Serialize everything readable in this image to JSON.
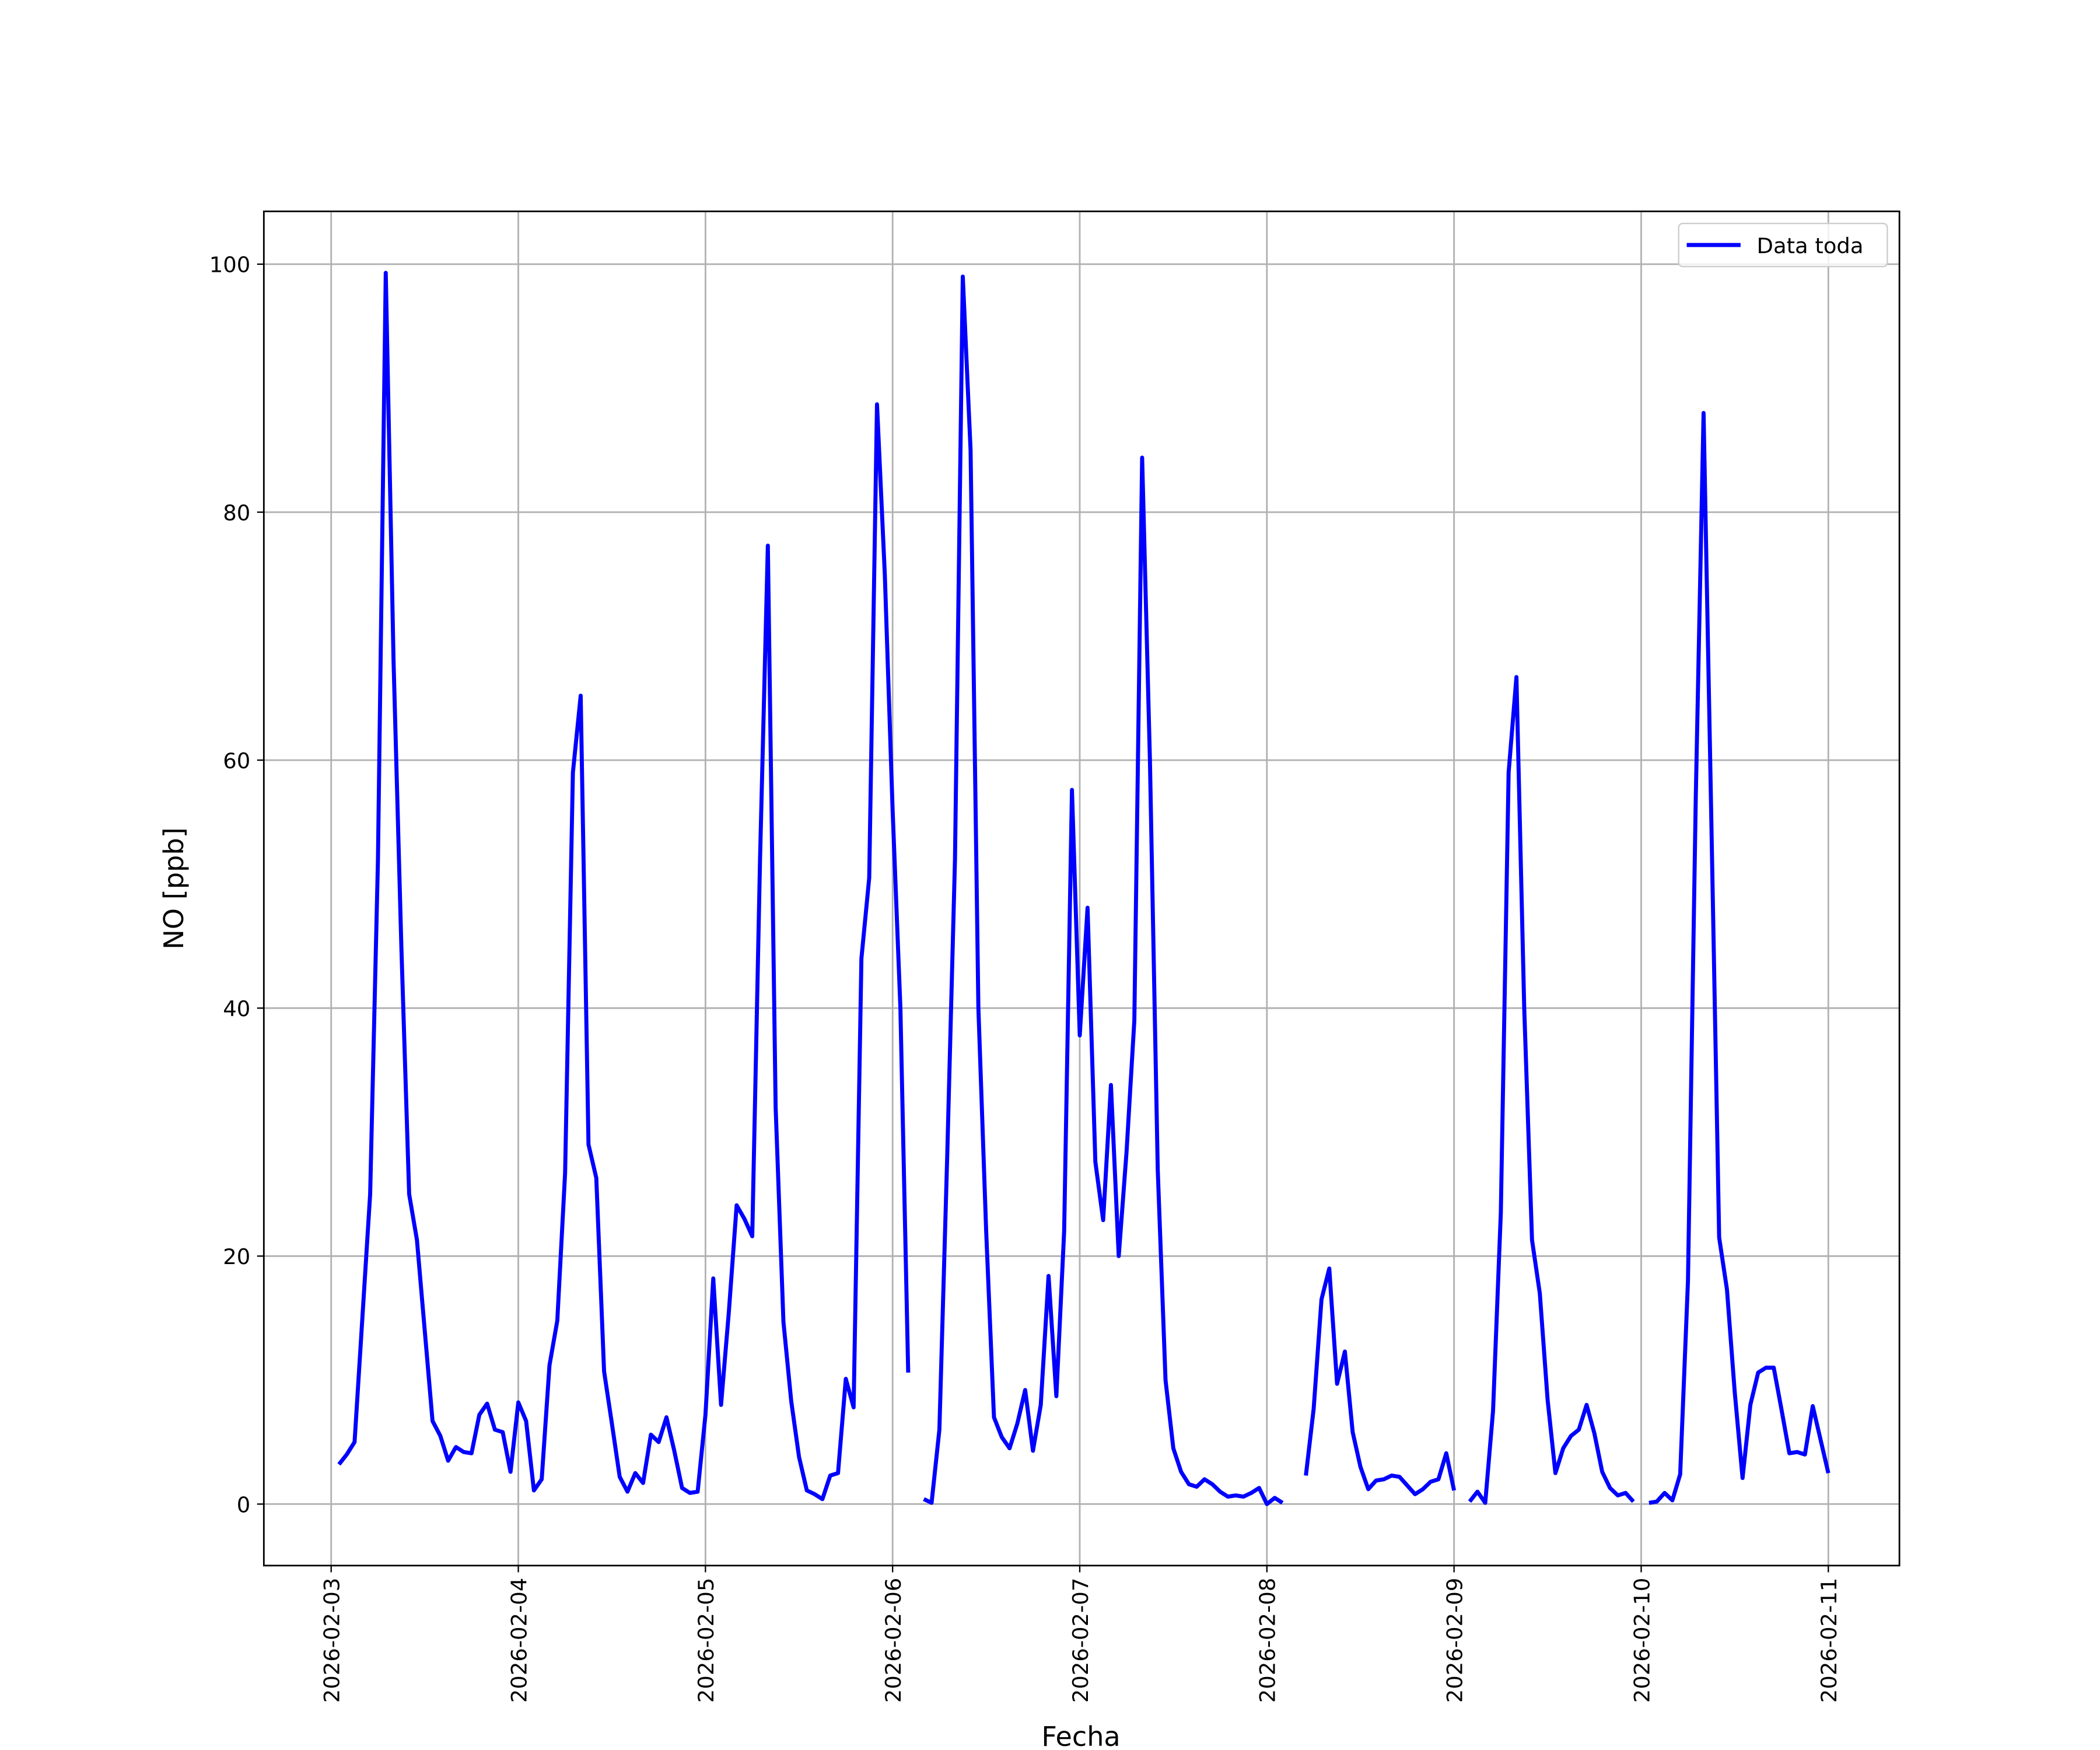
{
  "chart_data": {
    "type": "line",
    "xlabel": "Fecha",
    "ylabel": "NO [ppb]",
    "x": [
      "2026-02-03 01:00",
      "2026-02-03 02:00",
      "2026-02-03 03:00",
      "2026-02-03 04:00",
      "2026-02-03 05:00",
      "2026-02-03 06:00",
      "2026-02-03 07:00",
      "2026-02-03 08:00",
      "2026-02-03 09:00",
      "2026-02-03 10:00",
      "2026-02-03 11:00",
      "2026-02-03 12:00",
      "2026-02-03 13:00",
      "2026-02-03 14:00",
      "2026-02-03 15:00",
      "2026-02-03 16:00",
      "2026-02-03 17:00",
      "2026-02-03 18:00",
      "2026-02-03 19:00",
      "2026-02-03 20:00",
      "2026-02-03 21:00",
      "2026-02-03 22:00",
      "2026-02-03 23:00",
      "2026-02-04 00:00",
      "2026-02-04 01:00",
      "2026-02-04 02:00",
      "2026-02-04 03:00",
      "2026-02-04 04:00",
      "2026-02-04 05:00",
      "2026-02-04 06:00",
      "2026-02-04 07:00",
      "2026-02-04 08:00",
      "2026-02-04 09:00",
      "2026-02-04 10:00",
      "2026-02-04 11:00",
      "2026-02-04 12:00",
      "2026-02-04 13:00",
      "2026-02-04 14:00",
      "2026-02-04 15:00",
      "2026-02-04 16:00",
      "2026-02-04 17:00",
      "2026-02-04 18:00",
      "2026-02-04 19:00",
      "2026-02-04 20:00",
      "2026-02-04 21:00",
      "2026-02-04 22:00",
      "2026-02-04 23:00",
      "2026-02-05 00:00",
      "2026-02-05 01:00",
      "2026-02-05 02:00",
      "2026-02-05 03:00",
      "2026-02-05 04:00",
      "2026-02-05 05:00",
      "2026-02-05 06:00",
      "2026-02-05 07:00",
      "2026-02-05 08:00",
      "2026-02-05 09:00",
      "2026-02-05 10:00",
      "2026-02-05 11:00",
      "2026-02-05 12:00",
      "2026-02-05 13:00",
      "2026-02-05 14:00",
      "2026-02-05 15:00",
      "2026-02-05 16:00",
      "2026-02-05 17:00",
      "2026-02-05 18:00",
      "2026-02-05 19:00",
      "2026-02-05 20:00",
      "2026-02-05 21:00",
      "2026-02-05 22:00",
      "2026-02-05 23:00",
      "2026-02-06 00:00",
      "2026-02-06 01:00",
      "2026-02-06 02:00",
      "2026-02-06 03:00",
      "2026-02-06 04:00",
      "2026-02-06 05:00",
      "2026-02-06 06:00",
      "2026-02-06 07:00",
      "2026-02-06 08:00",
      "2026-02-06 09:00",
      "2026-02-06 10:00",
      "2026-02-06 11:00",
      "2026-02-06 12:00",
      "2026-02-06 13:00",
      "2026-02-06 14:00",
      "2026-02-06 15:00",
      "2026-02-06 16:00",
      "2026-02-06 17:00",
      "2026-02-06 18:00",
      "2026-02-06 19:00",
      "2026-02-06 20:00",
      "2026-02-06 21:00",
      "2026-02-06 22:00",
      "2026-02-06 23:00",
      "2026-02-07 00:00",
      "2026-02-07 01:00",
      "2026-02-07 02:00",
      "2026-02-07 03:00",
      "2026-02-07 04:00",
      "2026-02-07 05:00",
      "2026-02-07 06:00",
      "2026-02-07 07:00",
      "2026-02-07 08:00",
      "2026-02-07 09:00",
      "2026-02-07 10:00",
      "2026-02-07 11:00",
      "2026-02-07 12:00",
      "2026-02-07 13:00",
      "2026-02-07 14:00",
      "2026-02-07 15:00",
      "2026-02-07 16:00",
      "2026-02-07 17:00",
      "2026-02-07 18:00",
      "2026-02-07 19:00",
      "2026-02-07 20:00",
      "2026-02-07 21:00",
      "2026-02-07 22:00",
      "2026-02-07 23:00",
      "2026-02-08 00:00",
      "2026-02-08 01:00",
      "2026-02-08 02:00",
      "2026-02-08 03:00",
      "2026-02-08 04:00",
      "2026-02-08 05:00",
      "2026-02-08 06:00",
      "2026-02-08 07:00",
      "2026-02-08 08:00",
      "2026-02-08 09:00",
      "2026-02-08 10:00",
      "2026-02-08 11:00",
      "2026-02-08 12:00",
      "2026-02-08 13:00",
      "2026-02-08 14:00",
      "2026-02-08 15:00",
      "2026-02-08 16:00",
      "2026-02-08 17:00",
      "2026-02-08 18:00",
      "2026-02-08 19:00",
      "2026-02-08 20:00",
      "2026-02-08 21:00",
      "2026-02-08 22:00",
      "2026-02-08 23:00",
      "2026-02-09 00:00",
      "2026-02-09 01:00",
      "2026-02-09 02:00",
      "2026-02-09 03:00",
      "2026-02-09 04:00",
      "2026-02-09 05:00",
      "2026-02-09 06:00",
      "2026-02-09 07:00",
      "2026-02-09 08:00",
      "2026-02-09 09:00",
      "2026-02-09 10:00",
      "2026-02-09 11:00",
      "2026-02-09 12:00",
      "2026-02-09 13:00",
      "2026-02-09 14:00",
      "2026-02-09 15:00",
      "2026-02-09 16:00",
      "2026-02-09 17:00",
      "2026-02-09 18:00",
      "2026-02-09 19:00",
      "2026-02-09 20:00",
      "2026-02-09 21:00",
      "2026-02-09 22:00",
      "2026-02-09 23:00",
      "2026-02-10 00:00",
      "2026-02-10 01:00",
      "2026-02-10 02:00",
      "2026-02-10 03:00",
      "2026-02-10 04:00",
      "2026-02-10 05:00",
      "2026-02-10 06:00",
      "2026-02-10 07:00",
      "2026-02-10 08:00",
      "2026-02-10 09:00",
      "2026-02-10 10:00",
      "2026-02-10 11:00",
      "2026-02-10 12:00",
      "2026-02-10 13:00",
      "2026-02-10 14:00",
      "2026-02-10 15:00",
      "2026-02-10 16:00",
      "2026-02-10 17:00",
      "2026-02-10 18:00",
      "2026-02-10 19:00",
      "2026-02-10 20:00",
      "2026-02-10 21:00",
      "2026-02-10 22:00",
      "2026-02-10 23:00",
      "2026-02-11 00:00"
    ],
    "series": [
      {
        "name": "Data toda",
        "color": "#0000ff",
        "values": [
          3.2,
          4,
          5,
          15,
          25,
          52,
          99.3,
          68,
          45,
          25,
          21.3,
          14,
          6.7,
          5.5,
          3.5,
          4.6,
          4.2,
          4.1,
          7.2,
          8.1,
          6,
          5.8,
          2.6,
          8.2,
          6.7,
          1.1,
          2,
          11.2,
          14.8,
          26.7,
          59,
          65.2,
          29,
          26.3,
          10.7,
          6.5,
          2.2,
          1,
          2.5,
          1.7,
          5.6,
          5,
          7,
          4.3,
          1.3,
          0.9,
          1,
          7.2,
          18.2,
          8,
          15.5,
          24.1,
          23,
          21.6,
          52,
          77.3,
          32,
          14.7,
          8.3,
          3.8,
          1.1,
          0.8,
          0.4,
          2.3,
          2.5,
          10.1,
          7.8,
          44,
          50.5,
          88.7,
          75,
          56,
          40,
          10.6,
          null,
          0.4,
          0.1,
          6,
          28,
          52,
          99,
          85,
          40,
          22,
          7,
          5.4,
          4.5,
          6.5,
          9.2,
          4.3,
          8,
          18.4,
          8.7,
          22,
          57.6,
          37.8,
          48.1,
          27.6,
          22.9,
          33.8,
          20,
          28.4,
          39,
          84.4,
          60,
          27,
          10,
          4.5,
          2.6,
          1.6,
          1.4,
          2,
          1.6,
          1,
          0.6,
          0.7,
          0.6,
          0.9,
          1.3,
          0,
          0.5,
          0.1,
          null,
          null,
          2.3,
          7.7,
          16.5,
          19,
          9.7,
          12.3,
          5.8,
          3,
          1.2,
          1.9,
          2,
          2.3,
          2.2,
          1.5,
          0.8,
          1.2,
          1.8,
          2,
          4.1,
          1.1,
          null,
          0.2,
          1,
          0.1,
          7.5,
          23.5,
          59,
          66.7,
          40,
          21.3,
          17,
          8.4,
          2.5,
          4.5,
          5.5,
          6,
          8,
          5.7,
          2.6,
          1.3,
          0.7,
          0.9,
          0.2,
          null,
          0.1,
          0.2,
          0.9,
          0.3,
          2.4,
          18,
          57,
          88,
          55,
          21.5,
          17.3,
          9,
          2.1,
          8,
          10.6,
          11,
          11,
          7.6,
          4.1,
          4.2,
          4,
          7.9,
          5.2,
          2.5
        ]
      }
    ],
    "xlim": [
      "2026-02-02 15:22",
      "2026-02-11 09:07"
    ],
    "xticks": [
      "2026-02-03",
      "2026-02-04",
      "2026-02-05",
      "2026-02-06",
      "2026-02-07",
      "2026-02-08",
      "2026-02-09",
      "2026-02-10",
      "2026-02-11"
    ],
    "ylim": [
      -4.96,
      104.26
    ],
    "yticks": [
      0,
      20,
      40,
      60,
      80,
      100
    ],
    "grid": true,
    "legend": "upper right"
  }
}
